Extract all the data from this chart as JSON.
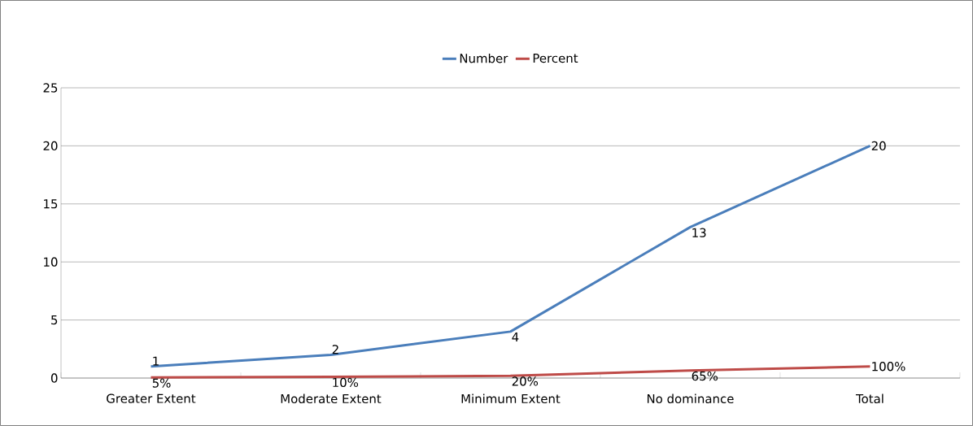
{
  "chart_data": {
    "type": "line",
    "categories": [
      "Greater Extent",
      "Moderate Extent",
      "Minimum Extent",
      "No dominance",
      "Total"
    ],
    "series": [
      {
        "name": "Number",
        "color": "#4a7ebb",
        "values": [
          1,
          2,
          4,
          13,
          20
        ],
        "value_labels": [
          "1",
          "2",
          "4",
          "13",
          "20"
        ]
      },
      {
        "name": "Percent",
        "color": "#be4b48",
        "values": [
          0.05,
          0.1,
          0.2,
          0.65,
          1
        ],
        "value_labels": [
          "5%",
          "10%",
          "20%",
          "65%",
          "100%"
        ]
      }
    ],
    "ylim": [
      0,
      25
    ],
    "yticks": [
      0,
      5,
      10,
      15,
      20,
      25
    ],
    "grid": "y",
    "legend": "top",
    "marker": "none",
    "line_style": "solid"
  }
}
